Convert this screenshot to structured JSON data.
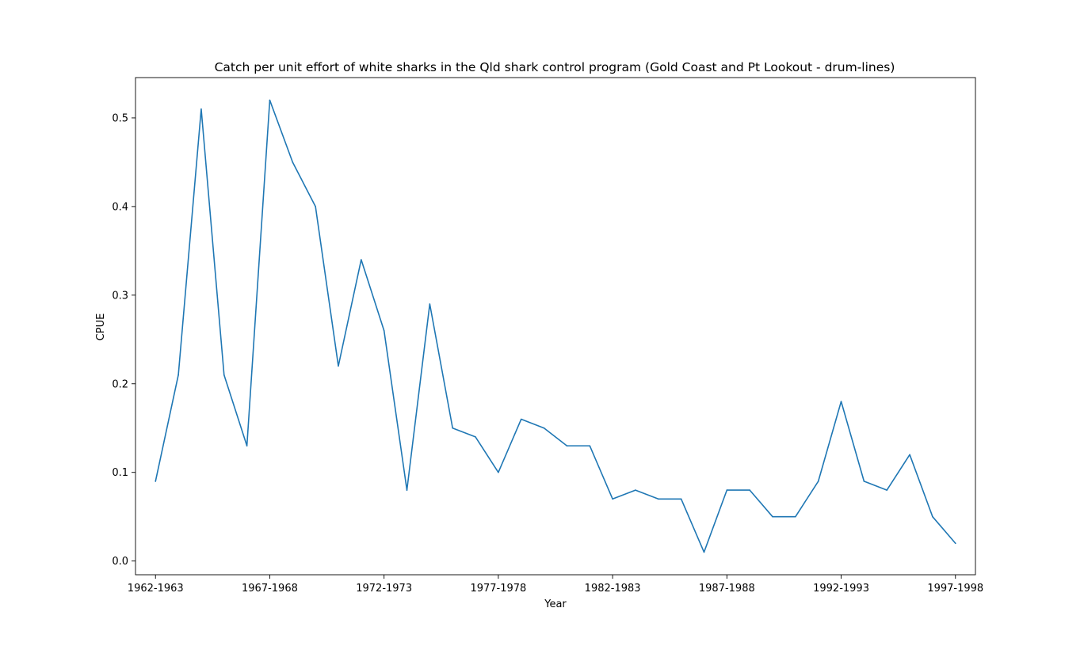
{
  "chart_data": {
    "type": "line",
    "title": "Catch per unit effort of white sharks in the Qld shark control program (Gold Coast and Pt Lookout - drum-lines)",
    "xlabel": "Year",
    "ylabel": "CPUE",
    "x": [
      "1962-1963",
      "1963-1964",
      "1964-1965",
      "1965-1966",
      "1966-1967",
      "1967-1968",
      "1968-1969",
      "1969-1970",
      "1970-1971",
      "1971-1972",
      "1972-1973",
      "1973-1974",
      "1974-1975",
      "1975-1976",
      "1976-1977",
      "1977-1978",
      "1978-1979",
      "1979-1980",
      "1980-1981",
      "1981-1982",
      "1982-1983",
      "1983-1984",
      "1984-1985",
      "1985-1986",
      "1986-1987",
      "1987-1988",
      "1988-1989",
      "1989-1990",
      "1990-1991",
      "1991-1992",
      "1992-1993",
      "1993-1994",
      "1994-1995",
      "1995-1996",
      "1996-1997",
      "1997-1998"
    ],
    "x_tick_labels": [
      "1962-1963",
      "1967-1968",
      "1972-1973",
      "1977-1978",
      "1982-1983",
      "1987-1988",
      "1992-1993",
      "1997-1998"
    ],
    "series": [
      {
        "values": [
          0.09,
          0.21,
          0.51,
          0.21,
          0.13,
          0.52,
          0.45,
          0.4,
          0.22,
          0.34,
          0.26,
          0.08,
          0.29,
          0.15,
          0.14,
          0.1,
          0.16,
          0.15,
          0.13,
          0.13,
          0.07,
          0.08,
          0.07,
          0.07,
          0.01,
          0.08,
          0.08,
          0.05,
          0.05,
          0.09,
          0.18,
          0.09,
          0.08,
          0.12,
          0.05,
          0.02
        ],
        "color": "#1f77b4"
      }
    ],
    "ylim": [
      -0.0155,
      0.5455
    ],
    "y_ticks": [
      0.0,
      0.1,
      0.2,
      0.3,
      0.4,
      0.5
    ],
    "y_tick_labels": [
      "0.0",
      "0.1",
      "0.2",
      "0.3",
      "0.4",
      "0.5"
    ],
    "grid": false,
    "legend": "none"
  }
}
